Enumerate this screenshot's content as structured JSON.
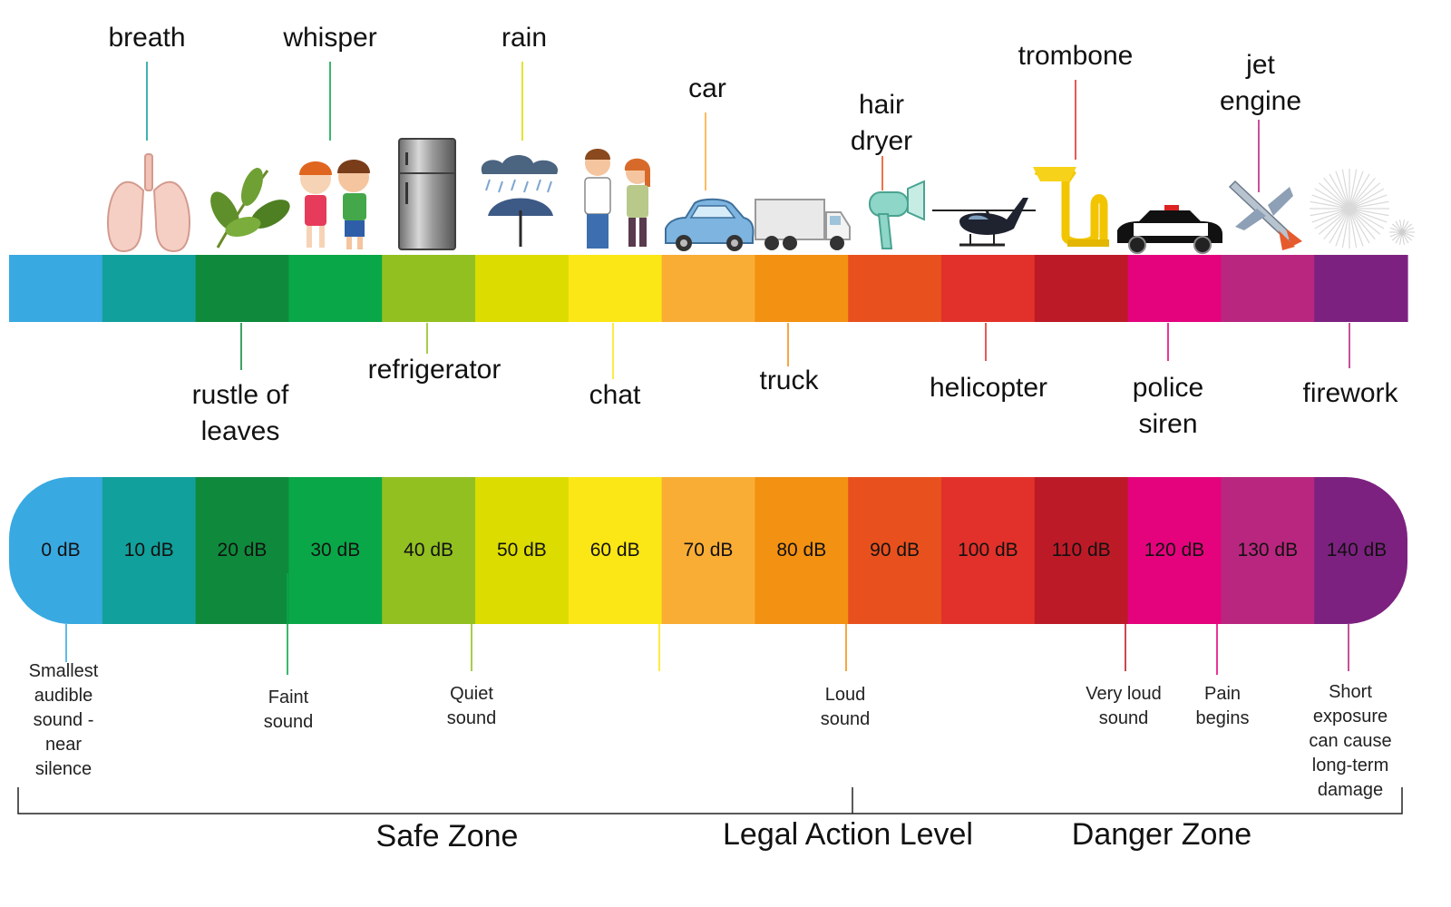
{
  "scale": {
    "colors": [
      "#39a9e1",
      "#12a09c",
      "#0f8a3c",
      "#0aa748",
      "#92c021",
      "#dcdc00",
      "#fbe715",
      "#f9ad35",
      "#f39112",
      "#e8511e",
      "#e2312a",
      "#bd1a27",
      "#e4037d",
      "#b9267f",
      "#7d2180"
    ],
    "levels": [
      "0 dB",
      "10 dB",
      "20 dB",
      "30 dB",
      "40 dB",
      "50 dB",
      "60 dB",
      "70 dB",
      "80 dB",
      "90 dB",
      "100 dB",
      "110 dB",
      "120 dB",
      "130 dB",
      "140 dB"
    ]
  },
  "top_labels": [
    {
      "text": "breath",
      "color": "#12a09c",
      "icon": "lungs-icon"
    },
    {
      "text": "whisper",
      "color": "#0aa748",
      "icon": "children-whisper-icon"
    },
    {
      "text": "rain",
      "color": "#dcdc00",
      "icon": "rain-umbrella-icon"
    },
    {
      "text": "car",
      "color": "#f9ad35",
      "icon": "car-icon"
    },
    {
      "text": "hair\ndryer",
      "color": "#e8511e",
      "icon": "hair-dryer-icon"
    },
    {
      "text": "trombone",
      "color": "#e2312a",
      "icon": "trombone-icon"
    },
    {
      "text": "jet\nengine",
      "color": "#b9267f",
      "icon": "jet-icon"
    }
  ],
  "bottom_labels": [
    {
      "text": "rustle of\nleaves",
      "color": "#0f8a3c",
      "icon": "leaves-icon"
    },
    {
      "text": "refrigerator",
      "color": "#92c021",
      "icon": "refrigerator-icon"
    },
    {
      "text": "chat",
      "color": "#fbe715",
      "icon": "people-chat-icon"
    },
    {
      "text": "truck",
      "color": "#f39112",
      "icon": "truck-icon"
    },
    {
      "text": "helicopter",
      "color": "#e2312a",
      "icon": "helicopter-icon"
    },
    {
      "text": "police\nsiren",
      "color": "#e4037d",
      "icon": "police-car-icon"
    },
    {
      "text": "firework",
      "color": "#b9267f",
      "icon": "firework-icon"
    }
  ],
  "notes": [
    {
      "text": "Smallest\naudible\nsound -\nnear\nsilence",
      "color": "#39a9e1"
    },
    {
      "text": "Faint\nsound",
      "color": "#0aa748"
    },
    {
      "text": "Quiet\nsound",
      "color": "#92c021"
    },
    {
      "text": "",
      "color": "#fbe715"
    },
    {
      "text": "Loud\nsound",
      "color": "#f39112"
    },
    {
      "text": "Very loud\nsound",
      "color": "#bd1a27"
    },
    {
      "text": "Pain\nbegins",
      "color": "#e4037d"
    },
    {
      "text": "Short\nexposure\ncan cause\nlong-term\ndamage",
      "color": "#b9267f"
    }
  ],
  "zones": [
    "Safe Zone",
    "Legal Action Level",
    "Danger Zone"
  ]
}
